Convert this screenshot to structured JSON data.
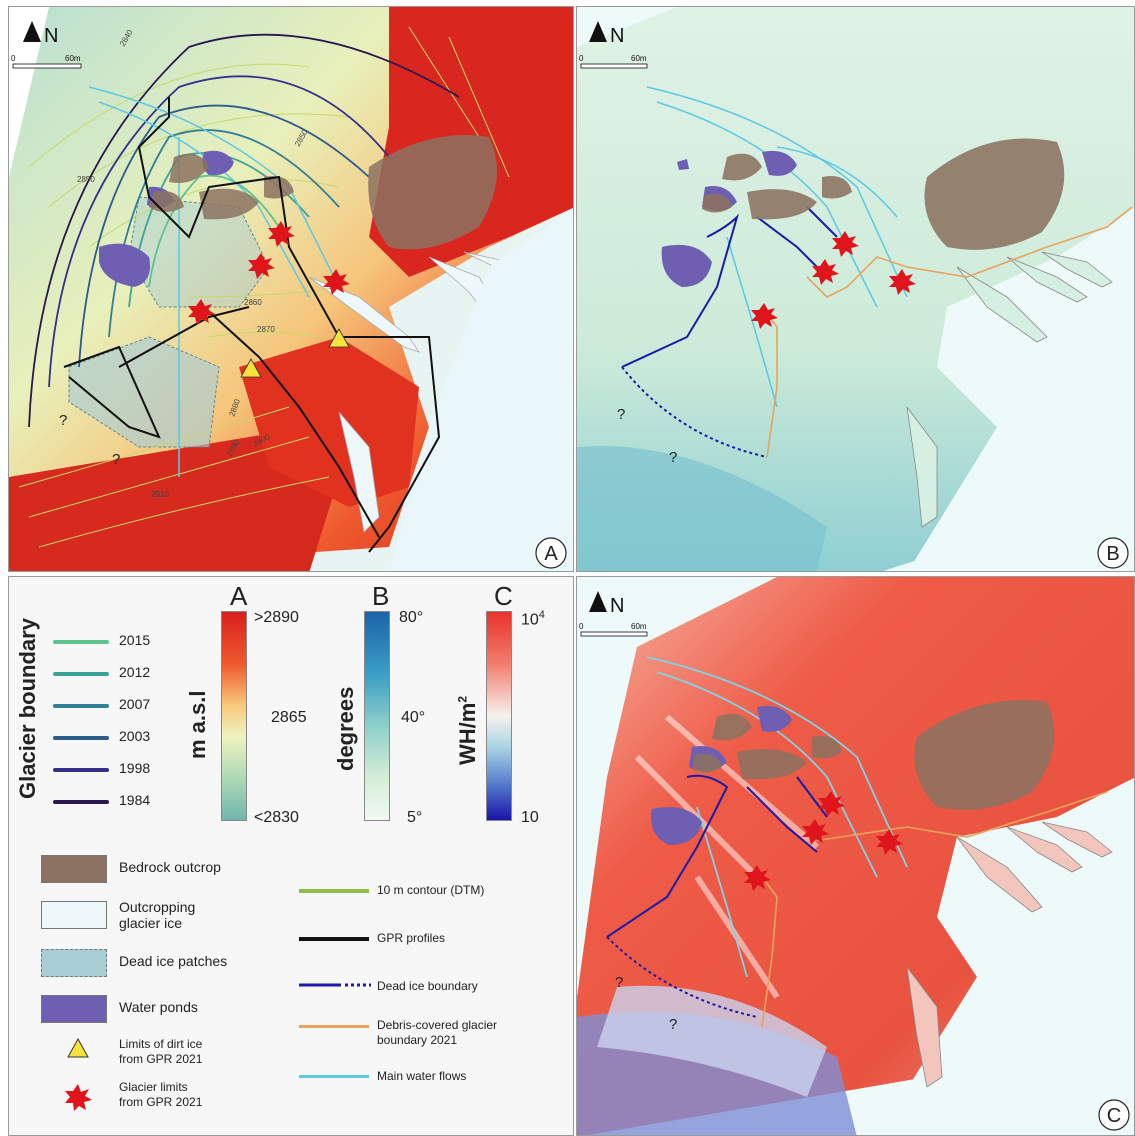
{
  "panels": {
    "a": {
      "letter": "A",
      "north": "N",
      "scale_zero": "0",
      "scale_end": "60m",
      "question": "?",
      "contours": [
        "2840",
        "2850",
        "2850",
        "2860",
        "2870",
        "2880",
        "2890",
        "2900",
        "2910"
      ]
    },
    "b": {
      "letter": "B",
      "north": "N",
      "scale_zero": "0",
      "scale_end": "60m",
      "question": "?"
    },
    "c": {
      "letter": "C",
      "north": "N",
      "scale_zero": "0",
      "scale_end": "60m",
      "question": "?"
    }
  },
  "legend": {
    "glacier_boundary_title": "Glacier boundary",
    "years": [
      {
        "label": "2015",
        "color": "#5cc48e"
      },
      {
        "label": "2012",
        "color": "#3aa597"
      },
      {
        "label": "2007",
        "color": "#2f7f96"
      },
      {
        "label": "2003",
        "color": "#2c5a8e"
      },
      {
        "label": "1998",
        "color": "#332f8a"
      },
      {
        "label": "1984",
        "color": "#2a1650"
      }
    ],
    "ramp_a": {
      "letter": "A",
      "unit": "m a.s.l",
      "top": ">2890",
      "mid": "2865",
      "bottom": "<2830"
    },
    "ramp_b": {
      "letter": "B",
      "unit": "degrees",
      "top": "80°",
      "mid": "40°",
      "bottom": "5°"
    },
    "ramp_c": {
      "letter": "C",
      "unit": "WH/m",
      "unit_sup": "2",
      "top_base": "10",
      "top_exp": "4",
      "bottom": "10"
    },
    "items": {
      "bedrock": "Bedrock outcrop",
      "outcropping_1": "Outcropping",
      "outcropping_2": "glacier ice",
      "dead_ice": "Dead ice patches",
      "water_ponds": "Water ponds",
      "dirt_ice_1": "Limits of dirt ice",
      "dirt_ice_2": "from GPR 2021",
      "glacier_limits_1": "Glacier limits",
      "glacier_limits_2": "from GPR 2021",
      "contour": "10 m contour (DTM)",
      "gpr": "GPR profiles",
      "dead_ice_boundary": "Dead ice boundary",
      "debris_1": "Debris-covered glacier",
      "debris_2": "boundary 2021",
      "water_flows": "Main water flows"
    },
    "colors": {
      "bedrock": "#8c7260",
      "outcropping": "#eef8fb",
      "dead_ice": "#a9cdd4",
      "water": "#6f5fb3",
      "dirt_ice": "#f3e33a",
      "star": "#e0141b",
      "contour": "#8cc04a",
      "gpr": "#111111",
      "dead_ice_boundary": "#1b1ba8",
      "debris": "#e8a35c",
      "water_flows": "#5bc8e6"
    }
  }
}
